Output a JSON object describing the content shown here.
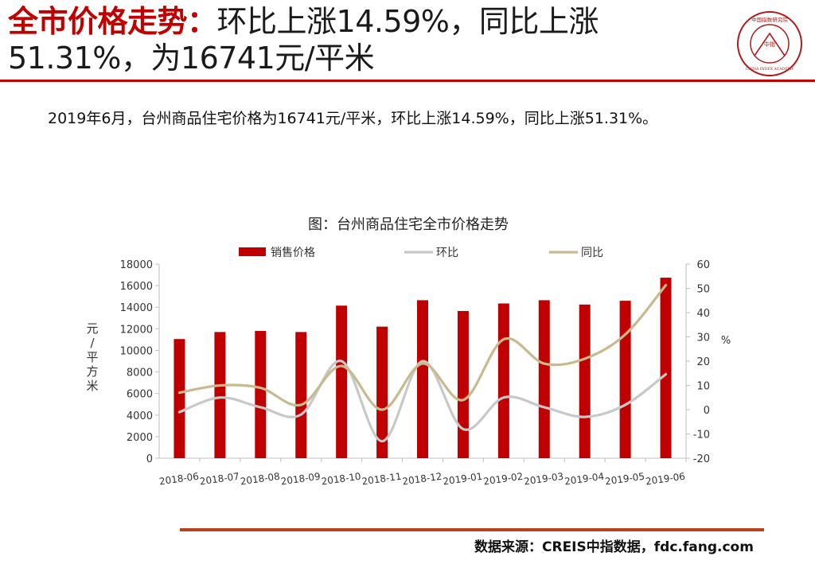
{
  "header": {
    "title_red": "全市价格走势：",
    "title_rest": "环比上涨14.59%，同比上涨51.31%，为16741元/平米"
  },
  "summary": "2019年6月，台州商品住宅价格为16741元/平米，环比上涨14.59%，同比上涨51.31%。",
  "logo": {
    "ring_text": "中国指数研究院",
    "center_text": "中指",
    "bottom_text": "CHINA INDEX ACADEMY"
  },
  "source": "数据来源：CREIS中指数据，fdc.fang.com",
  "colors": {
    "accent_red": "#c00000",
    "bar": "#c00000",
    "mom_line": "#c8c8c8",
    "yoy_line": "#c9b98f",
    "bottom_rule": "#b8421e"
  },
  "chart_data": {
    "type": "bar",
    "title": "图：台州商品住宅全市价格走势",
    "categories": [
      "2018-06",
      "2018-07",
      "2018-08",
      "2018-09",
      "2018-10",
      "2018-11",
      "2018-12",
      "2019-01",
      "2019-02",
      "2019-03",
      "2019-04",
      "2019-05",
      "2019-06"
    ],
    "series": [
      {
        "name": "销售价格",
        "type": "bar",
        "axis": "left",
        "values": [
          11050,
          11700,
          11800,
          11700,
          14150,
          12200,
          14650,
          13650,
          14350,
          14650,
          14250,
          14600,
          16741
        ]
      },
      {
        "name": "环比",
        "type": "line",
        "axis": "right",
        "values": [
          -1,
          5,
          1,
          -2,
          20,
          -13,
          20,
          -8,
          5,
          1,
          -3,
          2,
          14.59
        ]
      },
      {
        "name": "同比",
        "type": "line",
        "axis": "right",
        "values": [
          7,
          10,
          9,
          2,
          18,
          0,
          19,
          4,
          29,
          19,
          21,
          31,
          51.31
        ]
      }
    ],
    "ylabel_left": "元/平方米",
    "ylabel_right": "%",
    "ylim_left": [
      0,
      18000
    ],
    "yticks_left": [
      "18000",
      "16000",
      "14000",
      "12000",
      "10000",
      "8000",
      "6000",
      "4000",
      "2000",
      "0"
    ],
    "ylim_right": [
      -20,
      60
    ],
    "yticks_right": [
      "60",
      "50",
      "40",
      "30",
      "20",
      "10",
      "0",
      "-10",
      "-20"
    ],
    "legend_position": "top",
    "grid": false
  }
}
